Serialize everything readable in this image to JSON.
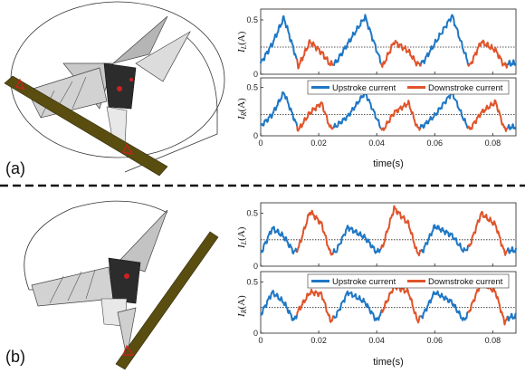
{
  "panels": [
    {
      "label": "(a)",
      "xlabel": "time(s)",
      "legend": [
        "Upstroke current",
        "Downstroke current"
      ],
      "plots": [
        {
          "ylabel_main": "I",
          "ylabel_sub": "L",
          "ylabel_unit": "(A)"
        },
        {
          "ylabel_main": "I",
          "ylabel_sub": "R",
          "ylabel_unit": "(A)"
        }
      ]
    },
    {
      "label": "(b)",
      "xlabel": "time(s)",
      "legend": [
        "Upstroke current",
        "Downstroke current"
      ],
      "plots": [
        {
          "ylabel_main": "I",
          "ylabel_sub": "L",
          "ylabel_unit": "(A)"
        },
        {
          "ylabel_main": "I",
          "ylabel_sub": "R",
          "ylabel_unit": "(A)"
        }
      ]
    }
  ],
  "colors": {
    "upstroke": "#1f77c4",
    "downstroke": "#e0542a",
    "rod": "#4a3f10",
    "marker": "#d21e1e"
  },
  "chart_data": [
    {
      "type": "line",
      "panel": "(a)",
      "ylabel": "I_L(A)",
      "xlabel": "",
      "xlim": [
        0,
        0.088
      ],
      "ylim": [
        0,
        0.6
      ],
      "yticks": [
        0,
        0.5
      ],
      "xticks": [
        0,
        0.02,
        0.04,
        0.06,
        0.08
      ],
      "xtick_labels": [
        "",
        "",
        "",
        "",
        ""
      ],
      "mean_line": 0.25,
      "x": [
        0.0,
        0.004,
        0.008,
        0.0115,
        0.013,
        0.017,
        0.021,
        0.024,
        0.026,
        0.03,
        0.036,
        0.04,
        0.042,
        0.046,
        0.051,
        0.054,
        0.056,
        0.06,
        0.066,
        0.07,
        0.072,
        0.076,
        0.081,
        0.084,
        0.086
      ],
      "y": [
        0.1,
        0.28,
        0.52,
        0.22,
        0.07,
        0.3,
        0.2,
        0.09,
        0.11,
        0.28,
        0.53,
        0.22,
        0.07,
        0.3,
        0.21,
        0.09,
        0.11,
        0.28,
        0.54,
        0.22,
        0.07,
        0.3,
        0.22,
        0.08,
        0.1
      ],
      "series": [
        {
          "name": "Upstroke current",
          "x_ranges": [
            [
              0.0,
              0.0125
            ],
            [
              0.025,
              0.0415
            ],
            [
              0.055,
              0.0715
            ],
            [
              0.085,
              0.088
            ]
          ]
        },
        {
          "name": "Downstroke current",
          "x_ranges": [
            [
              0.0125,
              0.025
            ],
            [
              0.0415,
              0.055
            ],
            [
              0.0715,
              0.085
            ]
          ]
        }
      ]
    },
    {
      "type": "line",
      "panel": "(a)",
      "ylabel": "I_R(A)",
      "xlabel": "time(s)",
      "xlim": [
        0,
        0.088
      ],
      "ylim": [
        0,
        0.6
      ],
      "yticks": [
        0,
        0.5
      ],
      "xticks": [
        0,
        0.02,
        0.04,
        0.06,
        0.08
      ],
      "xtick_labels": [
        "0",
        "0.02",
        "0.04",
        "0.06",
        "0.08"
      ],
      "mean_line": 0.22,
      "x": [
        0.0,
        0.004,
        0.008,
        0.0115,
        0.013,
        0.017,
        0.021,
        0.024,
        0.026,
        0.03,
        0.036,
        0.04,
        0.042,
        0.046,
        0.051,
        0.054,
        0.056,
        0.06,
        0.066,
        0.07,
        0.072,
        0.076,
        0.081,
        0.084,
        0.086
      ],
      "y": [
        0.1,
        0.22,
        0.45,
        0.18,
        0.06,
        0.24,
        0.34,
        0.08,
        0.1,
        0.2,
        0.45,
        0.18,
        0.05,
        0.24,
        0.34,
        0.08,
        0.1,
        0.21,
        0.45,
        0.17,
        0.06,
        0.24,
        0.35,
        0.07,
        0.09
      ],
      "series": [
        {
          "name": "Upstroke current",
          "x_ranges": [
            [
              0.0,
              0.0125
            ],
            [
              0.025,
              0.0415
            ],
            [
              0.055,
              0.0715
            ],
            [
              0.085,
              0.088
            ]
          ]
        },
        {
          "name": "Downstroke current",
          "x_ranges": [
            [
              0.0125,
              0.025
            ],
            [
              0.0415,
              0.055
            ],
            [
              0.0715,
              0.085
            ]
          ]
        }
      ]
    },
    {
      "type": "line",
      "panel": "(b)",
      "ylabel": "I_L(A)",
      "xlabel": "",
      "xlim": [
        0,
        0.088
      ],
      "ylim": [
        0,
        0.6
      ],
      "yticks": [
        0,
        0.5
      ],
      "xticks": [
        0,
        0.02,
        0.04,
        0.06,
        0.08
      ],
      "xtick_labels": [
        "",
        "",
        "",
        "",
        ""
      ],
      "mean_line": 0.25,
      "x": [
        0.0,
        0.004,
        0.008,
        0.0115,
        0.013,
        0.017,
        0.021,
        0.024,
        0.026,
        0.03,
        0.036,
        0.04,
        0.042,
        0.046,
        0.051,
        0.054,
        0.056,
        0.06,
        0.066,
        0.07,
        0.072,
        0.076,
        0.081,
        0.084,
        0.086
      ],
      "y": [
        0.12,
        0.36,
        0.28,
        0.13,
        0.17,
        0.52,
        0.4,
        0.12,
        0.14,
        0.37,
        0.27,
        0.13,
        0.18,
        0.55,
        0.4,
        0.12,
        0.15,
        0.38,
        0.29,
        0.14,
        0.19,
        0.5,
        0.39,
        0.13,
        0.15
      ],
      "series": [
        {
          "name": "Upstroke current",
          "x_ranges": [
            [
              0.0,
              0.0125
            ],
            [
              0.025,
              0.0415
            ],
            [
              0.055,
              0.0715
            ],
            [
              0.085,
              0.088
            ]
          ]
        },
        {
          "name": "Downstroke current",
          "x_ranges": [
            [
              0.0125,
              0.025
            ],
            [
              0.0415,
              0.055
            ],
            [
              0.0715,
              0.085
            ]
          ]
        }
      ]
    },
    {
      "type": "line",
      "panel": "(b)",
      "ylabel": "I_R(A)",
      "xlabel": "time(s)",
      "xlim": [
        0,
        0.088
      ],
      "ylim": [
        0,
        0.6
      ],
      "yticks": [
        0,
        0.5
      ],
      "xticks": [
        0,
        0.02,
        0.04,
        0.06,
        0.08
      ],
      "xtick_labels": [
        "0",
        "0.02",
        "0.04",
        "0.06",
        "0.08"
      ],
      "mean_line": 0.25,
      "x": [
        0.0,
        0.004,
        0.008,
        0.0115,
        0.013,
        0.017,
        0.021,
        0.024,
        0.026,
        0.03,
        0.036,
        0.04,
        0.042,
        0.046,
        0.051,
        0.054,
        0.056,
        0.06,
        0.066,
        0.07,
        0.072,
        0.076,
        0.081,
        0.084,
        0.086
      ],
      "y": [
        0.18,
        0.4,
        0.3,
        0.12,
        0.22,
        0.4,
        0.38,
        0.12,
        0.17,
        0.4,
        0.3,
        0.12,
        0.22,
        0.46,
        0.4,
        0.12,
        0.18,
        0.4,
        0.3,
        0.12,
        0.22,
        0.5,
        0.4,
        0.11,
        0.16
      ],
      "series": [
        {
          "name": "Upstroke current",
          "x_ranges": [
            [
              0.0,
              0.0125
            ],
            [
              0.025,
              0.0415
            ],
            [
              0.055,
              0.0715
            ],
            [
              0.085,
              0.088
            ]
          ]
        },
        {
          "name": "Downstroke current",
          "x_ranges": [
            [
              0.0125,
              0.025
            ],
            [
              0.0415,
              0.055
            ],
            [
              0.0715,
              0.085
            ]
          ]
        }
      ]
    }
  ]
}
